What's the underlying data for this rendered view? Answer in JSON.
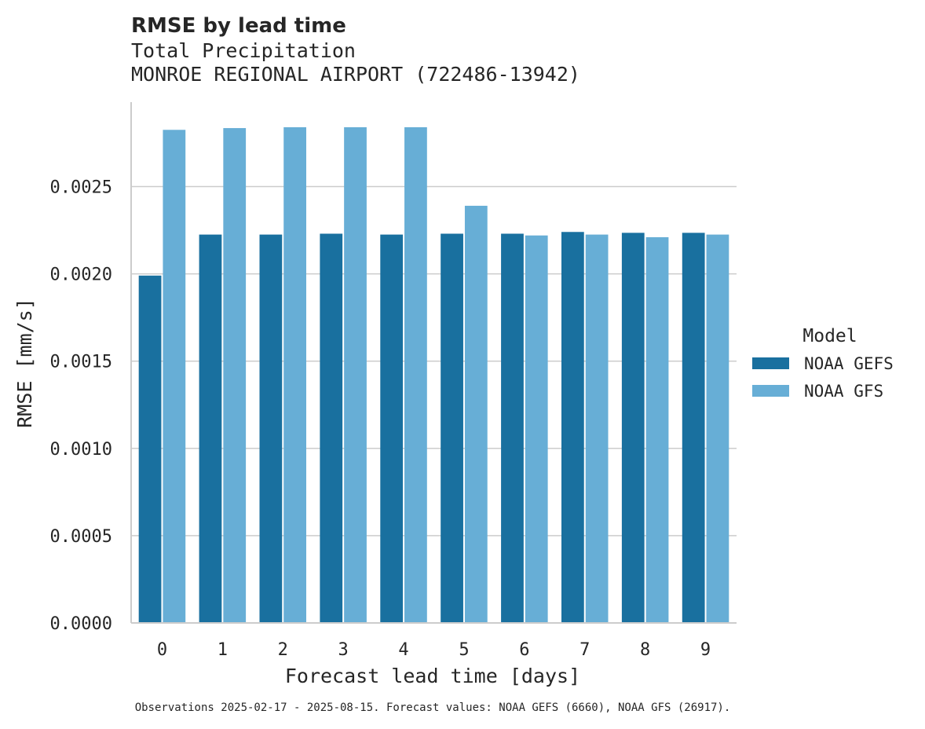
{
  "chart_data": {
    "type": "bar",
    "title": "RMSE by lead time",
    "subtitle_lines": [
      "Total Precipitation",
      "MONROE REGIONAL AIRPORT (722486-13942)"
    ],
    "xlabel": "Forecast lead time [days]",
    "ylabel": "RMSE [mm/s]",
    "categories": [
      "0",
      "1",
      "2",
      "3",
      "4",
      "5",
      "6",
      "7",
      "8",
      "9"
    ],
    "ylim": [
      0,
      0.003
    ],
    "yticks": [
      "0.0000",
      "0.0005",
      "0.0010",
      "0.0015",
      "0.0020",
      "0.0025"
    ],
    "grid": "horizontal",
    "legend": {
      "title": "Model",
      "placement": "right"
    },
    "series": [
      {
        "name": "NOAA GEFS",
        "color": "#19709f",
        "values": [
          0.00199,
          0.002225,
          0.002225,
          0.00223,
          0.002225,
          0.00223,
          0.00223,
          0.00224,
          0.002235,
          0.002235
        ]
      },
      {
        "name": "NOAA GFS",
        "color": "#67aed6",
        "values": [
          0.002825,
          0.002835,
          0.00284,
          0.00284,
          0.00284,
          0.00239,
          0.00222,
          0.002225,
          0.00221,
          0.002225
        ]
      }
    ],
    "footnote": "Observations 2025-02-17 - 2025-08-15. Forecast values: NOAA GEFS (6660), NOAA GFS (26917)."
  }
}
